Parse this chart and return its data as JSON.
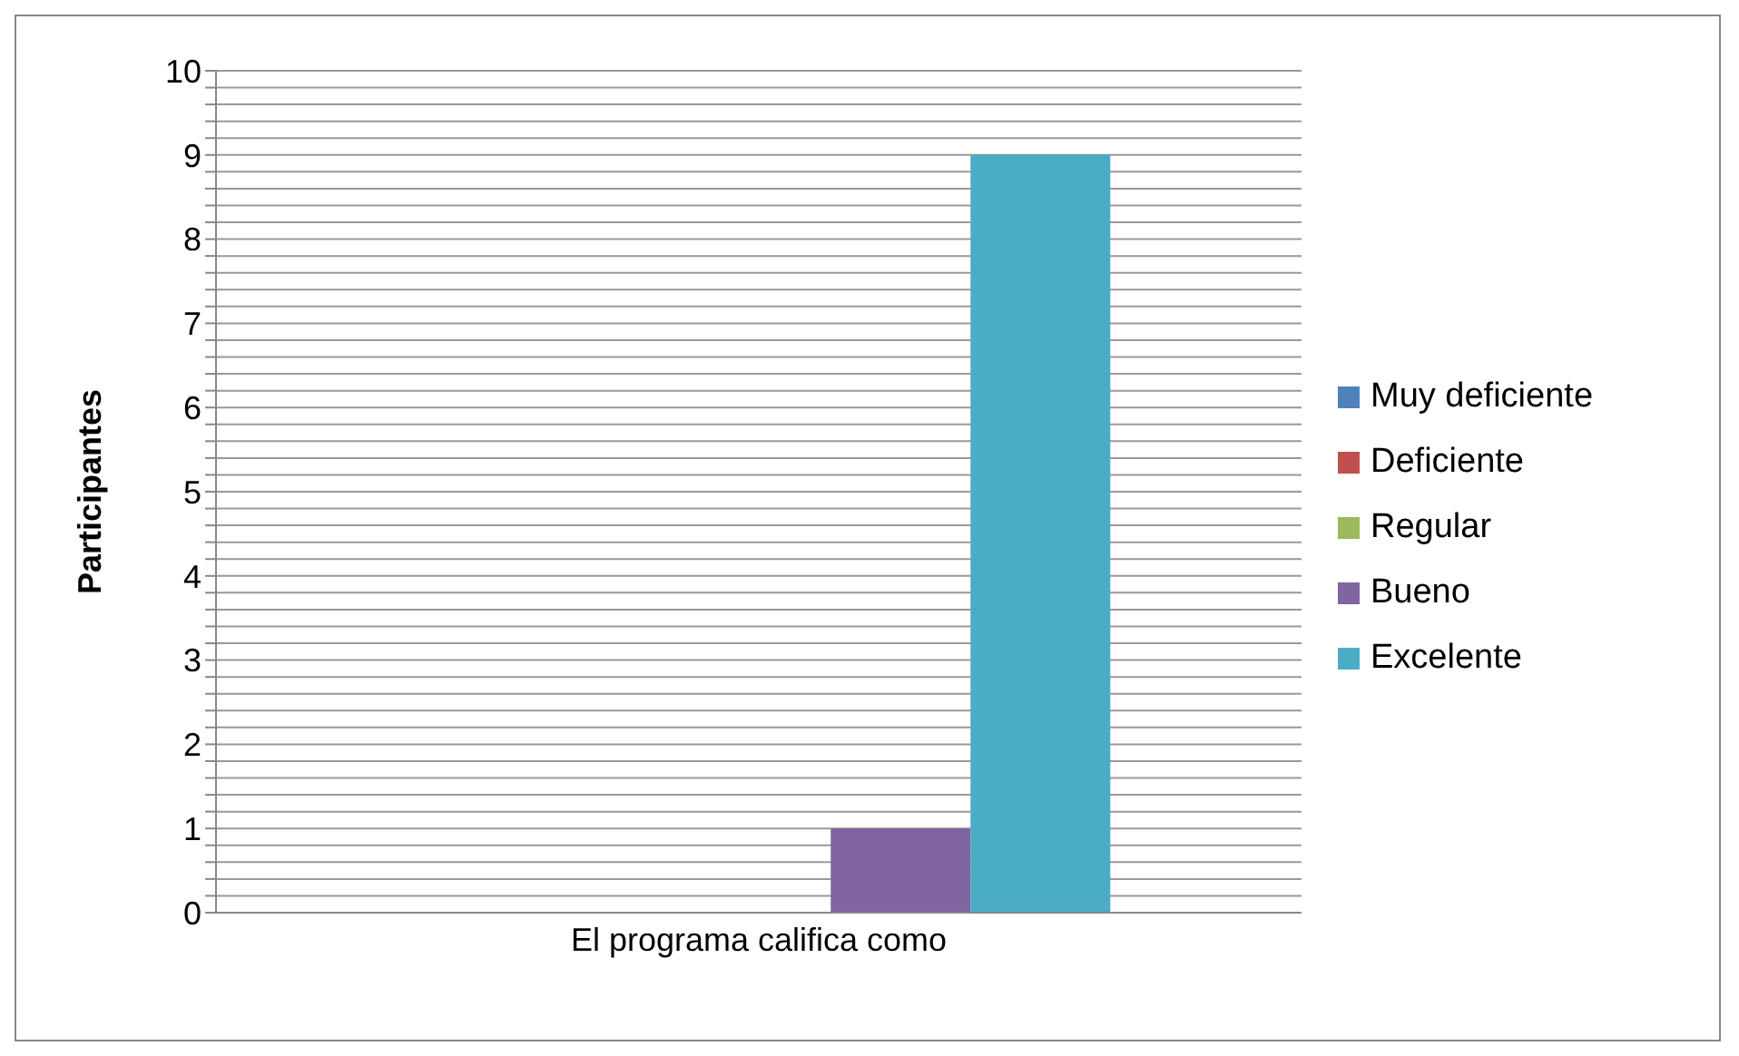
{
  "chart_data": {
    "type": "bar",
    "ylabel": "Participantes",
    "categories": [
      "El programa califica como"
    ],
    "series": [
      {
        "name": "Muy deficiente",
        "color": "#4f81bd",
        "values": [
          0
        ]
      },
      {
        "name": "Deficiente",
        "color": "#c0504d",
        "values": [
          0
        ]
      },
      {
        "name": "Regular",
        "color": "#9bbb59",
        "values": [
          0
        ]
      },
      {
        "name": "Bueno",
        "color": "#8064a2",
        "values": [
          1
        ]
      },
      {
        "name": "Excelente",
        "color": "#4bacc6",
        "values": [
          9
        ]
      }
    ],
    "ylim": [
      0,
      10
    ],
    "yticks": [
      0,
      {
        "value": 0.2,
        "label": null
      },
      {
        "value": 0.4,
        "label": null
      },
      {
        "value": 0.6,
        "label": null
      },
      {
        "value": 0.8,
        "label": null
      },
      1,
      {
        "value": 1.2,
        "label": null
      },
      {
        "value": 1.4,
        "label": null
      },
      {
        "value": 1.6,
        "label": null
      },
      {
        "value": 1.8,
        "label": null
      },
      2,
      {
        "value": 2.2,
        "label": null
      },
      {
        "value": 2.4,
        "label": null
      },
      {
        "value": 2.6,
        "label": null
      },
      {
        "value": 2.8,
        "label": null
      },
      3,
      {
        "value": 3.2,
        "label": null
      },
      {
        "value": 3.4,
        "label": null
      },
      {
        "value": 3.6,
        "label": null
      },
      {
        "value": 3.8,
        "label": null
      },
      4,
      {
        "value": 4.2,
        "label": null
      },
      {
        "value": 4.4,
        "label": null
      },
      {
        "value": 4.6,
        "label": null
      },
      {
        "value": 4.8,
        "label": null
      },
      5,
      {
        "value": 5.2,
        "label": null
      },
      {
        "value": 5.4,
        "label": null
      },
      {
        "value": 5.6,
        "label": null
      },
      {
        "value": 5.8,
        "label": null
      },
      6,
      {
        "value": 6.2,
        "label": null
      },
      {
        "value": 6.4,
        "label": null
      },
      {
        "value": 6.6,
        "label": null
      },
      {
        "value": 6.8,
        "label": null
      },
      7,
      {
        "value": 7.2,
        "label": null
      },
      {
        "value": 7.4,
        "label": null
      },
      {
        "value": 7.6,
        "label": null
      },
      {
        "value": 7.8,
        "label": null
      },
      8,
      {
        "value": 8.2,
        "label": null
      },
      {
        "value": 8.4,
        "label": null
      },
      {
        "value": 8.6,
        "label": null
      },
      {
        "value": 8.8,
        "label": null
      },
      9,
      {
        "value": 9.2,
        "label": null
      },
      {
        "value": 9.4,
        "label": null
      },
      {
        "value": 9.6,
        "label": null
      },
      {
        "value": 9.8,
        "label": null
      },
      10
    ],
    "grid": true,
    "legend": "right"
  }
}
